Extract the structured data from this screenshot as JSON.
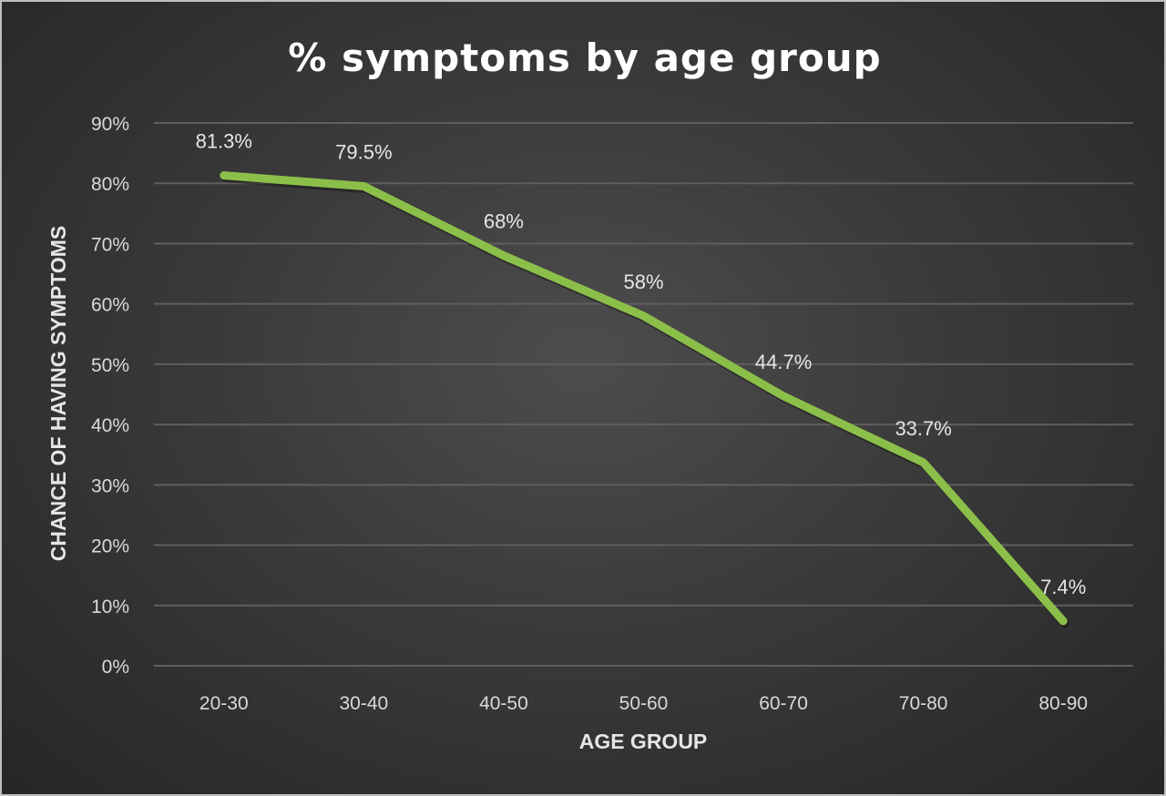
{
  "chart_data": {
    "type": "line",
    "title": "% symptoms by age group",
    "xlabel": "AGE GROUP",
    "ylabel": "CHANCE OF HAVING SYMPTOMS",
    "categories": [
      "20-30",
      "30-40",
      "40-50",
      "50-60",
      "60-70",
      "70-80",
      "80-90"
    ],
    "values": [
      81.3,
      79.5,
      68,
      58,
      44.7,
      33.7,
      7.4
    ],
    "data_labels": [
      "81.3%",
      "79.5%",
      "68%",
      "58%",
      "44.7%",
      "33.7%",
      "7.4%"
    ],
    "ylim": [
      0,
      90
    ],
    "yticks": [
      "0%",
      "10%",
      "20%",
      "30%",
      "40%",
      "50%",
      "60%",
      "70%",
      "80%",
      "90%"
    ],
    "grid": true,
    "legend": "none",
    "line_color": "#8cbf4a"
  }
}
